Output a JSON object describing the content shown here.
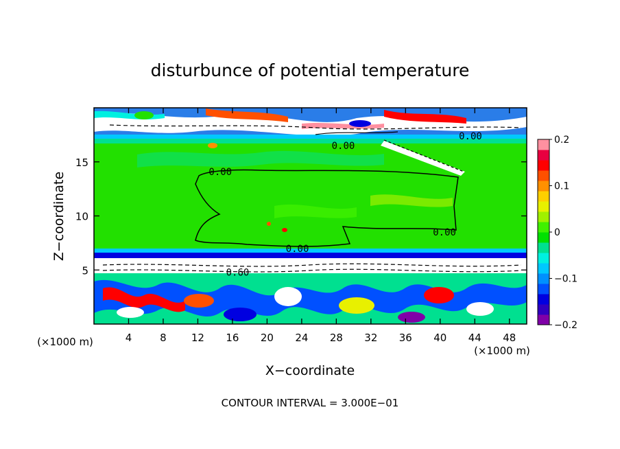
{
  "chart_data": {
    "type": "heatmap",
    "title": "disturbunce of potential temperature",
    "xlabel": "X−coordinate",
    "ylabel": "Z−coordinate",
    "x_unit": "(×1000 m)",
    "z_unit": "(×1000 m)",
    "xlim": [
      0,
      50
    ],
    "ylim": [
      0,
      20
    ],
    "x_ticks": [
      4,
      8,
      12,
      16,
      20,
      24,
      28,
      32,
      36,
      40,
      44,
      48
    ],
    "y_ticks": [
      5,
      10,
      15
    ],
    "colorbar": {
      "range": [
        -0.2,
        0.2
      ],
      "ticks": [
        {
          "value": 0.2,
          "label": "0.2"
        },
        {
          "value": 0.1,
          "label": "0.1"
        },
        {
          "value": 0,
          "label": "0"
        },
        {
          "value": -0.1,
          "label": "−0.1"
        },
        {
          "value": -0.2,
          "label": "−0.2"
        }
      ],
      "colors": [
        "#8000a8",
        "#3000c0",
        "#0000e0",
        "#0050ff",
        "#0090ff",
        "#00c8ff",
        "#00f0e0",
        "#00e090",
        "#00e000",
        "#40f000",
        "#a0f000",
        "#e8f000",
        "#ffd000",
        "#ff9000",
        "#ff5000",
        "#ff0000",
        "#e80040",
        "#ff90a0"
      ]
    },
    "contour_labels": [
      {
        "text": "0.00",
        "x": 14.6,
        "z": 14.1
      },
      {
        "text": "0.00",
        "x": 28.8,
        "z": 16.5
      },
      {
        "text": "0.00",
        "x": 43.5,
        "z": 17.4
      },
      {
        "text": "0.00",
        "x": 40.5,
        "z": 8.5
      },
      {
        "text": "0.00",
        "x": 23.5,
        "z": 7.0
      },
      {
        "text": "0.60",
        "x": 16.6,
        "z": 4.8
      }
    ],
    "contour_interval_text": "CONTOUR INTERVAL = 3.000E−01"
  }
}
